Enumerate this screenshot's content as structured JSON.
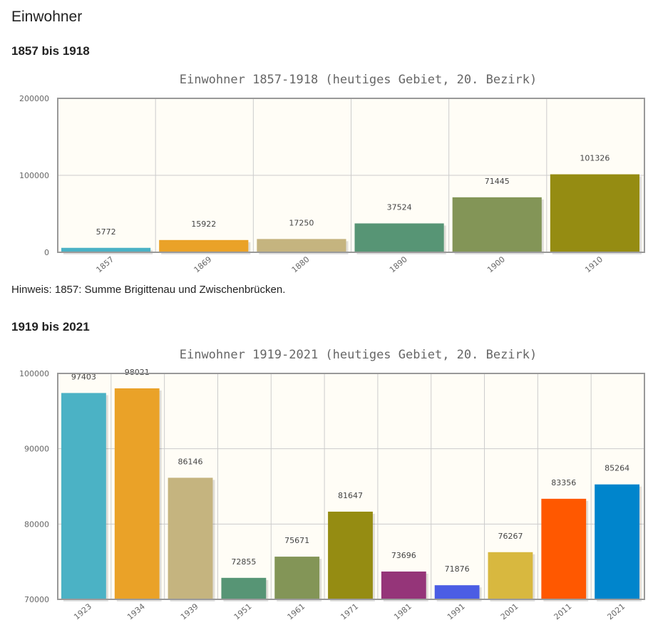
{
  "page_title": "Einwohner",
  "section1": {
    "heading": "1857 bis 1918",
    "note": "Hinweis: 1857: Summe Brigittenau und Zwischenbrücken."
  },
  "section2": {
    "heading": "1919 bis 2021"
  },
  "chart_data": [
    {
      "type": "bar",
      "title": "Einwohner 1857-1918 (heutiges Gebiet, 20. Bezirk)",
      "categories": [
        "1857",
        "1869",
        "1880",
        "1890",
        "1900",
        "1910"
      ],
      "values": [
        5772,
        15922,
        17250,
        37524,
        71445,
        101326
      ],
      "ylim": [
        0,
        200000
      ],
      "yticks": [
        "0",
        "100000",
        "200000"
      ],
      "grid": true,
      "xlabel": "",
      "ylabel": "",
      "colors": [
        "#4bb2c5",
        "#eaa228",
        "#c5b47f",
        "#579575",
        "#839557",
        "#958c12"
      ]
    },
    {
      "type": "bar",
      "title": "Einwohner 1919-2021 (heutiges Gebiet, 20. Bezirk)",
      "categories": [
        "1923",
        "1934",
        "1939",
        "1951",
        "1961",
        "1971",
        "1981",
        "1991",
        "2001",
        "2011",
        "2021"
      ],
      "values": [
        97403,
        98021,
        86146,
        72855,
        75671,
        81647,
        73696,
        71876,
        76267,
        83356,
        85264
      ],
      "ylim": [
        70000,
        100000
      ],
      "yticks": [
        "70000",
        "80000",
        "90000",
        "100000"
      ],
      "grid": true,
      "xlabel": "",
      "ylabel": "",
      "colors": [
        "#4bb2c5",
        "#eaa228",
        "#c5b47f",
        "#579575",
        "#839557",
        "#958c12",
        "#953579",
        "#4b5de4",
        "#d8b83f",
        "#ff5800",
        "#0085cc"
      ]
    }
  ]
}
